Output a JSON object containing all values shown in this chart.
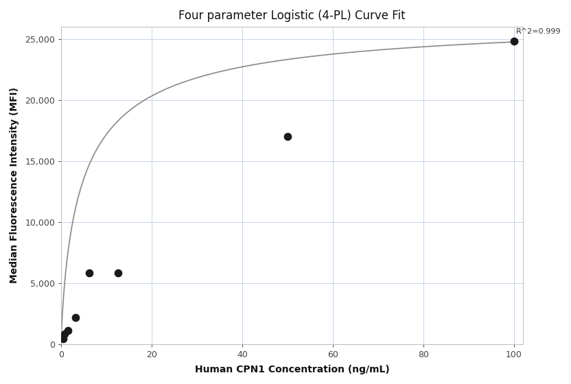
{
  "title": "Four parameter Logistic (4-PL) Curve Fit",
  "xlabel": "Human CPN1 Concentration (ng/mL)",
  "ylabel": "Median Fluorescence Intensity (MFI)",
  "scatter_x": [
    0.4,
    0.78,
    1.56,
    3.13,
    6.25,
    12.5,
    50.0,
    100.0
  ],
  "scatter_y": [
    420,
    820,
    1100,
    2200,
    5850,
    5850,
    17000,
    24800
  ],
  "r_squared_text": "R^2=0.999",
  "xlim": [
    0,
    102
  ],
  "ylim": [
    0,
    26000
  ],
  "yticks": [
    0,
    5000,
    10000,
    15000,
    20000,
    25000
  ],
  "xticks": [
    0,
    20,
    40,
    60,
    80,
    100
  ],
  "background_color": "#ffffff",
  "grid_color": "#c8d4e8",
  "scatter_color": "#1a1a1a",
  "line_color": "#888888",
  "title_fontsize": 12,
  "label_fontsize": 10,
  "tick_fontsize": 9
}
